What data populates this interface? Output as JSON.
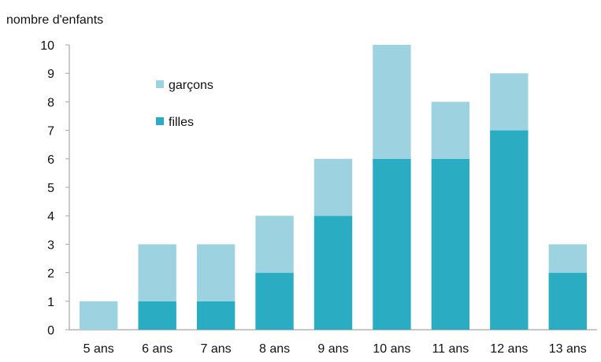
{
  "chart_data": {
    "type": "bar",
    "stacked": true,
    "title": "",
    "xlabel": "",
    "ylabel": "nombre d'enfants",
    "ylim": [
      0,
      10
    ],
    "yticks": [
      0,
      1,
      2,
      3,
      4,
      5,
      6,
      7,
      8,
      9,
      10
    ],
    "grid": false,
    "legend_position": "top-left",
    "categories": [
      "5 ans",
      "6 ans",
      "7 ans",
      "8 ans",
      "9 ans",
      "10 ans",
      "11 ans",
      "12 ans",
      "13 ans"
    ],
    "series": [
      {
        "name": "filles",
        "color": "#2aacc3",
        "values": [
          0,
          1,
          1,
          2,
          4,
          6,
          6,
          7,
          2
        ]
      },
      {
        "name": "garçons",
        "color": "#9dd3e1",
        "values": [
          1,
          2,
          2,
          2,
          2,
          4,
          2,
          2,
          1
        ]
      }
    ],
    "legend_order": [
      "garçons",
      "filles"
    ]
  }
}
